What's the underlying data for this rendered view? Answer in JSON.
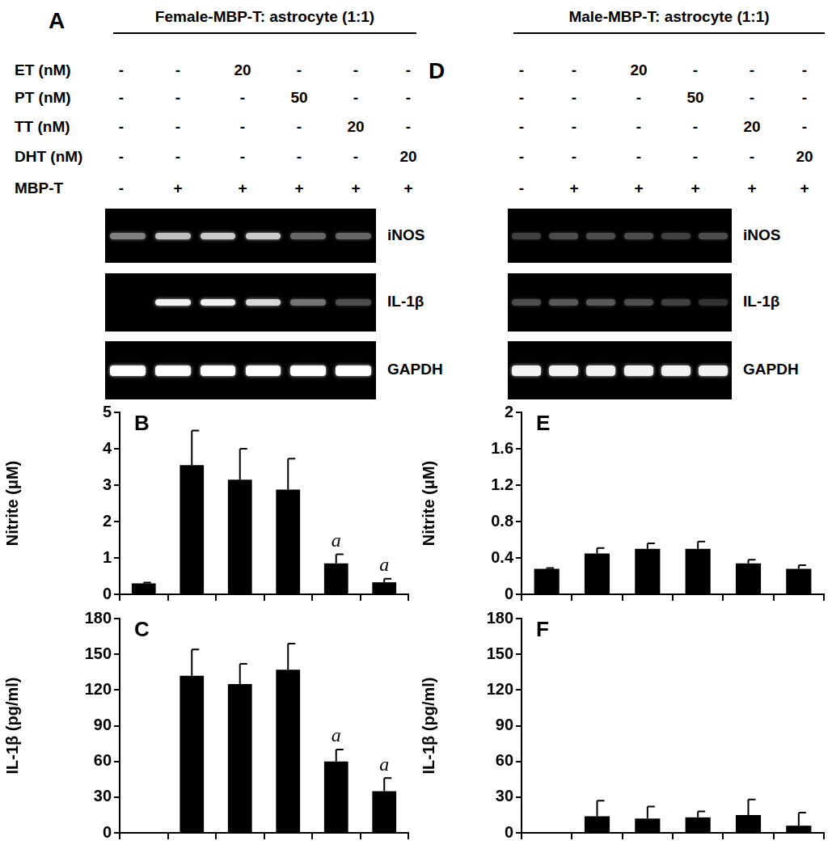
{
  "treatment_labels": [
    "ET (nM)",
    "PT (nM)",
    "TT (nM)",
    "DHT (nM)",
    "MBP-T"
  ],
  "panels": [
    {
      "letter": "A",
      "header": "Female-MBP-T: astrocyte (1:1)",
      "treatments": [
        [
          "-",
          "-",
          "20",
          "-",
          "-",
          "-"
        ],
        [
          "-",
          "-",
          "-",
          "50",
          "-",
          "-"
        ],
        [
          "-",
          "-",
          "-",
          "-",
          "20",
          "-"
        ],
        [
          "-",
          "-",
          "-",
          "-",
          "-",
          "20"
        ],
        [
          "-",
          "+",
          "+",
          "+",
          "+",
          "+"
        ]
      ],
      "gels": [
        {
          "label": "iNOS",
          "intensity": [
            0.5,
            0.75,
            0.8,
            0.8,
            0.4,
            0.4
          ]
        },
        {
          "label": "IL-1β",
          "intensity": [
            0,
            0.95,
            0.95,
            0.85,
            0.45,
            0.3
          ]
        },
        {
          "label": "GAPDH",
          "intensity": [
            1,
            1,
            1,
            1,
            1,
            1
          ]
        }
      ]
    },
    {
      "letter": "D",
      "header": "Male-MBP-T: astrocyte (1:1)",
      "treatments": [
        [
          "-",
          "-",
          "20",
          "-",
          "-",
          "-"
        ],
        [
          "-",
          "-",
          "-",
          "50",
          "-",
          "-"
        ],
        [
          "-",
          "-",
          "-",
          "-",
          "20",
          "-"
        ],
        [
          "-",
          "-",
          "-",
          "-",
          "-",
          "20"
        ],
        [
          "-",
          "+",
          "+",
          "+",
          "+",
          "+"
        ]
      ],
      "gels": [
        {
          "label": "iNOS",
          "intensity": [
            0.25,
            0.3,
            0.3,
            0.3,
            0.25,
            0.3
          ]
        },
        {
          "label": "IL-1β",
          "intensity": [
            0.3,
            0.35,
            0.35,
            0.3,
            0.25,
            0.2
          ]
        },
        {
          "label": "GAPDH",
          "intensity": [
            0.95,
            0.95,
            0.95,
            0.95,
            0.95,
            0.95
          ]
        }
      ]
    }
  ],
  "chart_data": [
    {
      "type": "bar",
      "title": "B",
      "y_label": "Nitrite (μM)",
      "categories": [
        null,
        null,
        null,
        null,
        null,
        null
      ],
      "values": [
        0.3,
        3.55,
        3.15,
        2.88,
        0.85,
        0.33
      ],
      "errors": [
        0.02,
        0.95,
        0.85,
        0.85,
        0.25,
        0.1
      ],
      "annotations": [
        null,
        null,
        null,
        null,
        "a",
        "a"
      ],
      "color": "#000000",
      "ylim": [
        0,
        5
      ],
      "yticks": [
        0,
        1,
        2,
        3,
        4,
        5
      ],
      "grid": false,
      "tick_labels": "y"
    },
    {
      "type": "bar",
      "title": "C",
      "y_label": "IL-1β (pg/ml)",
      "categories": [
        null,
        null,
        null,
        null,
        null,
        null
      ],
      "values": [
        0,
        132,
        125,
        137,
        60,
        35
      ],
      "errors": [
        0,
        22,
        17,
        22,
        10,
        11
      ],
      "annotations": [
        null,
        null,
        null,
        null,
        "a",
        "a"
      ],
      "color": "#000000",
      "ylim": [
        0,
        180
      ],
      "yticks": [
        0,
        30,
        60,
        90,
        120,
        150,
        180
      ],
      "grid": false,
      "tick_labels": "y"
    },
    {
      "type": "bar",
      "title": "E",
      "y_label": "Nitrite (μM)",
      "categories": [
        null,
        null,
        null,
        null,
        null,
        null
      ],
      "values": [
        0.28,
        0.45,
        0.5,
        0.5,
        0.34,
        0.28
      ],
      "errors": [
        0.01,
        0.06,
        0.06,
        0.08,
        0.04,
        0.04
      ],
      "annotations": [
        null,
        null,
        null,
        null,
        null,
        null
      ],
      "color": "#000000",
      "ylim": [
        0,
        2
      ],
      "yticks": [
        0,
        0.4,
        0.8,
        1.2,
        1.6,
        2
      ],
      "grid": false,
      "tick_labels": "y"
    },
    {
      "type": "bar",
      "title": "F",
      "y_label": "IL-1β (pg/ml)",
      "categories": [
        null,
        null,
        null,
        null,
        null,
        null
      ],
      "values": [
        0,
        14,
        12,
        13,
        15,
        6
      ],
      "errors": [
        0,
        13,
        10,
        5,
        13,
        11
      ],
      "annotations": [
        null,
        null,
        null,
        null,
        null,
        null
      ],
      "color": "#000000",
      "ylim": [
        0,
        180
      ],
      "yticks": [
        0,
        30,
        60,
        90,
        120,
        150,
        180
      ],
      "grid": false,
      "tick_labels": "y"
    }
  ]
}
